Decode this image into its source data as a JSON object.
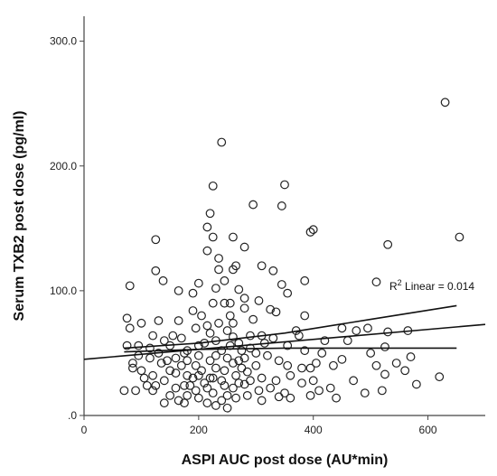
{
  "chart_data": {
    "type": "scatter",
    "title": "",
    "xlabel": "ASPI AUC post dose (AU*min)",
    "ylabel": "Serum TXB2 post dose (pg/ml)",
    "xlim": [
      0,
      700
    ],
    "ylim": [
      0,
      320
    ],
    "x_ticks": [
      0,
      200,
      400,
      600
    ],
    "x_tick_labels": [
      "0",
      "200",
      "400",
      "600"
    ],
    "y_ticks": [
      0,
      100,
      200,
      300
    ],
    "y_tick_labels": [
      ".0",
      "100.0",
      "200.0",
      "300.0"
    ],
    "grid": false,
    "legend": "none",
    "annotation": {
      "prefix": "R",
      "superscript": "2",
      "suffix": " Linear = 0.014"
    },
    "fit_line": {
      "x": [
        0,
        700
      ],
      "y": [
        45,
        73
      ]
    },
    "ci_upper": {
      "x": [
        70,
        200,
        350,
        500,
        650
      ],
      "y": [
        54,
        58,
        66,
        77,
        88
      ]
    },
    "ci_lower": {
      "x": [
        70,
        200,
        350,
        500,
        650
      ],
      "y": [
        51,
        53,
        54,
        54,
        54
      ]
    },
    "colors": {
      "marker": "#222222",
      "line": "#111111",
      "axis": "#444444"
    },
    "points": [
      [
        630,
        251
      ],
      [
        240,
        219
      ],
      [
        225,
        184
      ],
      [
        350,
        185
      ],
      [
        295,
        169
      ],
      [
        345,
        168
      ],
      [
        220,
        162
      ],
      [
        215,
        151
      ],
      [
        395,
        147
      ],
      [
        400,
        149
      ],
      [
        655,
        143
      ],
      [
        125,
        141
      ],
      [
        225,
        143
      ],
      [
        260,
        143
      ],
      [
        530,
        137
      ],
      [
        280,
        135
      ],
      [
        215,
        132
      ],
      [
        235,
        126
      ],
      [
        310,
        120
      ],
      [
        235,
        117
      ],
      [
        260,
        117
      ],
      [
        265,
        120
      ],
      [
        125,
        116
      ],
      [
        330,
        116
      ],
      [
        138,
        108
      ],
      [
        245,
        108
      ],
      [
        385,
        108
      ],
      [
        80,
        104
      ],
      [
        510,
        107
      ],
      [
        345,
        105
      ],
      [
        165,
        100
      ],
      [
        200,
        106
      ],
      [
        230,
        102
      ],
      [
        270,
        101
      ],
      [
        190,
        98
      ],
      [
        355,
        98
      ],
      [
        305,
        92
      ],
      [
        225,
        90
      ],
      [
        255,
        90
      ],
      [
        280,
        94
      ],
      [
        325,
        85
      ],
      [
        335,
        83
      ],
      [
        190,
        84
      ],
      [
        280,
        86
      ],
      [
        205,
        80
      ],
      [
        385,
        80
      ],
      [
        165,
        76
      ],
      [
        130,
        76
      ],
      [
        75,
        78
      ],
      [
        80,
        70
      ],
      [
        100,
        74
      ],
      [
        260,
        74
      ],
      [
        295,
        77
      ],
      [
        250,
        68
      ],
      [
        220,
        66
      ],
      [
        310,
        64
      ],
      [
        370,
        68
      ],
      [
        450,
        70
      ],
      [
        475,
        68
      ],
      [
        495,
        70
      ],
      [
        565,
        68
      ],
      [
        530,
        67
      ],
      [
        420,
        60
      ],
      [
        260,
        63
      ],
      [
        270,
        58
      ],
      [
        210,
        58
      ],
      [
        170,
        62
      ],
      [
        140,
        60
      ],
      [
        95,
        56
      ],
      [
        75,
        56
      ],
      [
        115,
        54
      ],
      [
        290,
        54
      ],
      [
        240,
        52
      ],
      [
        180,
        52
      ],
      [
        385,
        52
      ],
      [
        415,
        50
      ],
      [
        500,
        50
      ],
      [
        450,
        45
      ],
      [
        525,
        55
      ],
      [
        570,
        47
      ],
      [
        545,
        42
      ],
      [
        510,
        40
      ],
      [
        525,
        33
      ],
      [
        560,
        36
      ],
      [
        620,
        31
      ],
      [
        580,
        25
      ],
      [
        470,
        28
      ],
      [
        490,
        18
      ],
      [
        520,
        20
      ],
      [
        430,
        22
      ],
      [
        410,
        20
      ],
      [
        395,
        16
      ],
      [
        340,
        15
      ],
      [
        350,
        18
      ],
      [
        360,
        14
      ],
      [
        380,
        38
      ],
      [
        395,
        38
      ],
      [
        360,
        32
      ],
      [
        335,
        28
      ],
      [
        310,
        30
      ],
      [
        280,
        25
      ],
      [
        260,
        22
      ],
      [
        250,
        16
      ],
      [
        240,
        12
      ],
      [
        225,
        18
      ],
      [
        200,
        14
      ],
      [
        185,
        24
      ],
      [
        180,
        16
      ],
      [
        150,
        16
      ],
      [
        120,
        20
      ],
      [
        110,
        24
      ],
      [
        90,
        20
      ],
      [
        70,
        20
      ],
      [
        100,
        36
      ],
      [
        120,
        32
      ],
      [
        140,
        28
      ],
      [
        160,
        34
      ],
      [
        170,
        40
      ],
      [
        180,
        44
      ],
      [
        200,
        48
      ],
      [
        220,
        44
      ],
      [
        230,
        38
      ],
      [
        245,
        36
      ],
      [
        260,
        42
      ],
      [
        280,
        46
      ],
      [
        300,
        40
      ],
      [
        320,
        48
      ],
      [
        340,
        44
      ],
      [
        190,
        30
      ],
      [
        210,
        26
      ],
      [
        240,
        28
      ],
      [
        265,
        32
      ],
      [
        285,
        35
      ],
      [
        305,
        20
      ],
      [
        325,
        22
      ],
      [
        160,
        46
      ],
      [
        135,
        42
      ],
      [
        115,
        46
      ],
      [
        95,
        48
      ],
      [
        85,
        42
      ],
      [
        150,
        56
      ],
      [
        200,
        56
      ],
      [
        230,
        60
      ],
      [
        255,
        56
      ],
      [
        275,
        52
      ],
      [
        300,
        50
      ],
      [
        150,
        36
      ],
      [
        175,
        24
      ],
      [
        205,
        36
      ],
      [
        275,
        38
      ],
      [
        290,
        28
      ],
      [
        165,
        12
      ],
      [
        215,
        10
      ],
      [
        230,
        8
      ],
      [
        250,
        6
      ],
      [
        195,
        20
      ],
      [
        215,
        22
      ],
      [
        245,
        24
      ],
      [
        270,
        26
      ],
      [
        180,
        32
      ],
      [
        200,
        32
      ],
      [
        220,
        30
      ],
      [
        230,
        48
      ],
      [
        250,
        46
      ],
      [
        270,
        44
      ],
      [
        120,
        64
      ],
      [
        130,
        50
      ],
      [
        145,
        44
      ],
      [
        105,
        30
      ],
      [
        85,
        38
      ],
      [
        355,
        56
      ],
      [
        375,
        64
      ],
      [
        405,
        42
      ],
      [
        435,
        40
      ],
      [
        460,
        60
      ],
      [
        440,
        14
      ],
      [
        400,
        28
      ],
      [
        380,
        26
      ],
      [
        355,
        40
      ],
      [
        310,
        12
      ],
      [
        285,
        16
      ],
      [
        265,
        14
      ],
      [
        225,
        30
      ],
      [
        195,
        40
      ],
      [
        175,
        10
      ],
      [
        160,
        22
      ],
      [
        140,
        10
      ],
      [
        125,
        24
      ],
      [
        155,
        64
      ],
      [
        175,
        50
      ],
      [
        195,
        70
      ],
      [
        215,
        72
      ],
      [
        235,
        74
      ],
      [
        255,
        80
      ],
      [
        245,
        90
      ],
      [
        290,
        64
      ],
      [
        315,
        58
      ],
      [
        330,
        62
      ]
    ]
  }
}
